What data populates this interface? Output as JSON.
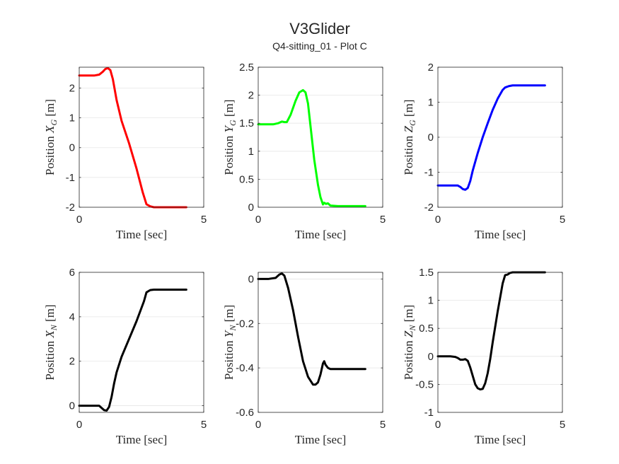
{
  "figure": {
    "title": "V3Glider",
    "subtitle": "Q4-sitting_01 - Plot C"
  },
  "chart_data": [
    {
      "type": "line",
      "name": "plot-xg",
      "xlabel": "Time [sec]",
      "ylabel": {
        "pre": "Position ",
        "var": "X",
        "sub": "G",
        "post": " [m]"
      },
      "xlim": [
        0,
        5
      ],
      "ylim": [
        -2,
        2.7
      ],
      "xticks": [
        0,
        5
      ],
      "yticks": [
        -2,
        -1,
        0,
        1,
        2
      ],
      "grid": true,
      "color": "#ff0000",
      "x": [
        0,
        0.6,
        0.8,
        0.95,
        1.05,
        1.15,
        1.25,
        1.35,
        1.5,
        1.7,
        2.0,
        2.3,
        2.55,
        2.7,
        2.85,
        3.0,
        3.5,
        4.0,
        4.3
      ],
      "y": [
        2.42,
        2.42,
        2.45,
        2.55,
        2.64,
        2.67,
        2.6,
        2.3,
        1.6,
        0.9,
        0.15,
        -0.7,
        -1.5,
        -1.9,
        -1.97,
        -2.0,
        -2.0,
        -2.0,
        -2.0
      ]
    },
    {
      "type": "line",
      "name": "plot-yg",
      "xlabel": "Time [sec]",
      "ylabel": {
        "pre": "Position ",
        "var": "Y",
        "sub": "G",
        "post": " [m]"
      },
      "xlim": [
        0,
        5
      ],
      "ylim": [
        0,
        2.5
      ],
      "xticks": [
        0,
        5
      ],
      "yticks": [
        0,
        0.5,
        1,
        1.5,
        2,
        2.5
      ],
      "grid": true,
      "color": "#00ff00",
      "x": [
        0,
        0.6,
        0.8,
        0.95,
        1.05,
        1.15,
        1.3,
        1.5,
        1.65,
        1.8,
        1.9,
        2.0,
        2.1,
        2.25,
        2.4,
        2.5,
        2.6,
        2.65,
        2.72,
        2.8,
        2.9,
        3.2,
        3.6,
        4.0,
        4.3
      ],
      "y": [
        1.48,
        1.48,
        1.5,
        1.53,
        1.52,
        1.52,
        1.65,
        1.9,
        2.05,
        2.09,
        2.05,
        1.85,
        1.45,
        0.85,
        0.4,
        0.18,
        0.05,
        0.08,
        0.06,
        0.07,
        0.03,
        0.02,
        0.02,
        0.02,
        0.02
      ]
    },
    {
      "type": "line",
      "name": "plot-zg",
      "xlabel": "Time [sec]",
      "ylabel": {
        "pre": "Position ",
        "var": "Z",
        "sub": "G",
        "post": " [m]"
      },
      "xlim": [
        0,
        5
      ],
      "ylim": [
        -2,
        2
      ],
      "xticks": [
        0,
        5
      ],
      "yticks": [
        -2,
        -1,
        0,
        1,
        2
      ],
      "grid": true,
      "color": "#0000ff",
      "x": [
        0,
        0.5,
        0.8,
        0.9,
        1.0,
        1.1,
        1.2,
        1.3,
        1.4,
        1.6,
        1.8,
        2.0,
        2.2,
        2.4,
        2.6,
        2.7,
        2.85,
        3.0,
        3.5,
        4.0,
        4.3
      ],
      "y": [
        -1.38,
        -1.38,
        -1.38,
        -1.42,
        -1.48,
        -1.5,
        -1.45,
        -1.25,
        -0.95,
        -0.45,
        0.0,
        0.4,
        0.78,
        1.1,
        1.35,
        1.42,
        1.46,
        1.48,
        1.48,
        1.48,
        1.48
      ]
    },
    {
      "type": "line",
      "name": "plot-xn",
      "xlabel": "Time [sec]",
      "ylabel": {
        "pre": "Position ",
        "var": "X",
        "sub": "N",
        "post": " [m]"
      },
      "xlim": [
        0,
        5
      ],
      "ylim": [
        -0.3,
        6
      ],
      "xticks": [
        0,
        5
      ],
      "yticks": [
        0,
        2,
        4,
        6
      ],
      "grid": true,
      "color": "#000000",
      "x": [
        0,
        0.6,
        0.8,
        0.9,
        1.0,
        1.1,
        1.2,
        1.3,
        1.4,
        1.5,
        1.7,
        2.0,
        2.3,
        2.6,
        2.7,
        2.85,
        3.0,
        3.5,
        4.0,
        4.3
      ],
      "y": [
        0.0,
        0.0,
        0.0,
        -0.1,
        -0.2,
        -0.22,
        -0.05,
        0.4,
        1.0,
        1.5,
        2.2,
        3.0,
        3.8,
        4.7,
        5.1,
        5.2,
        5.22,
        5.22,
        5.22,
        5.22
      ]
    },
    {
      "type": "line",
      "name": "plot-yn",
      "xlabel": "Time [sec]",
      "ylabel": {
        "pre": "Position ",
        "var": "Y",
        "sub": "N",
        "post": " [m]"
      },
      "xlim": [
        0,
        5
      ],
      "ylim": [
        -0.6,
        0.03
      ],
      "xticks": [
        0,
        5
      ],
      "yticks": [
        -0.6,
        -0.4,
        -0.2,
        0
      ],
      "grid": true,
      "color": "#000000",
      "x": [
        0,
        0.4,
        0.7,
        0.85,
        0.95,
        1.05,
        1.2,
        1.4,
        1.6,
        1.8,
        2.0,
        2.2,
        2.3,
        2.4,
        2.5,
        2.6,
        2.65,
        2.7,
        2.8,
        2.9,
        3.0,
        3.5,
        4.0,
        4.3
      ],
      "y": [
        0.0,
        0.0,
        0.005,
        0.02,
        0.025,
        0.015,
        -0.04,
        -0.14,
        -0.26,
        -0.37,
        -0.44,
        -0.475,
        -0.475,
        -0.465,
        -0.43,
        -0.38,
        -0.37,
        -0.385,
        -0.4,
        -0.405,
        -0.405,
        -0.405,
        -0.405,
        -0.405
      ]
    },
    {
      "type": "line",
      "name": "plot-zn",
      "xlabel": "Time [sec]",
      "ylabel": {
        "pre": "Position ",
        "var": "Z",
        "sub": "N",
        "post": " [m]"
      },
      "xlim": [
        0,
        5
      ],
      "ylim": [
        -1,
        1.5
      ],
      "xticks": [
        0,
        5
      ],
      "yticks": [
        -1,
        -0.5,
        0,
        0.5,
        1,
        1.5
      ],
      "grid": true,
      "color": "#000000",
      "x": [
        0,
        0.5,
        0.7,
        0.8,
        0.9,
        1.0,
        1.1,
        1.2,
        1.3,
        1.4,
        1.5,
        1.6,
        1.7,
        1.8,
        1.9,
        2.0,
        2.1,
        2.2,
        2.4,
        2.6,
        2.7,
        2.8,
        2.9,
        3.0,
        3.5,
        4.0,
        4.3
      ],
      "y": [
        0.0,
        0.0,
        -0.01,
        -0.03,
        -0.06,
        -0.06,
        -0.05,
        -0.08,
        -0.2,
        -0.35,
        -0.5,
        -0.57,
        -0.59,
        -0.58,
        -0.48,
        -0.3,
        -0.05,
        0.25,
        0.8,
        1.3,
        1.45,
        1.46,
        1.49,
        1.5,
        1.5,
        1.5,
        1.5
      ]
    }
  ]
}
